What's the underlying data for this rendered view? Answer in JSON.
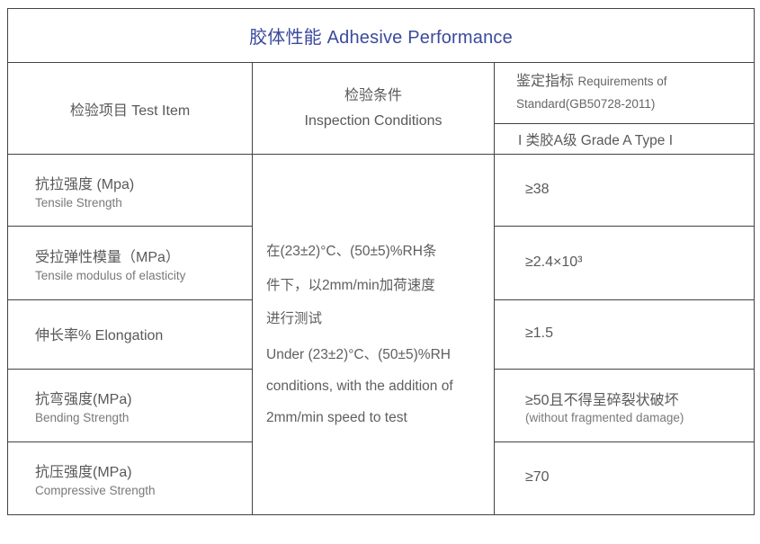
{
  "colors": {
    "accent": "#3b4a9c",
    "border": "#424242",
    "text_primary": "#5a5858",
    "text_secondary": "#7a7878"
  },
  "title": "胶体性能 Adhesive Performance",
  "header": {
    "test_item": "检验项目 Test Item",
    "inspection_conditions_cn": "检验条件",
    "inspection_conditions_en": "Inspection Conditions",
    "requirements_cn": "鉴定指标",
    "requirements_en1": "Requirements of",
    "requirements_en2": "Standard(GB50728-2011)",
    "grade": "I 类胶A级  Grade A Type I"
  },
  "conditions": {
    "cn": "在(23±2)°C、(50±5)%RH条\n件下，以2mm/min加荷速度\n进行测试",
    "en": "Under (23±2)°C、(50±5)%RH\nconditions, with the addition of\n2mm/min speed to test"
  },
  "rows": [
    {
      "item_cn": "抗拉强度 (Mpa)",
      "item_en": "Tensile Strength",
      "value": "≥38",
      "note": ""
    },
    {
      "item_cn": "受拉弹性模量（MPa）",
      "item_en": "Tensile modulus of elasticity",
      "value": "≥2.4×10³",
      "note": ""
    },
    {
      "item_cn": "伸长率% Elongation",
      "item_en": "",
      "value": "≥1.5",
      "note": ""
    },
    {
      "item_cn": "抗弯强度(MPa)",
      "item_en": "Bending Strength",
      "value": "≥50且不得呈碎裂状破坏",
      "note": "(without fragmented damage)"
    },
    {
      "item_cn": "抗压强度(MPa)",
      "item_en": "Compressive Strength",
      "value": "≥70",
      "note": ""
    }
  ]
}
